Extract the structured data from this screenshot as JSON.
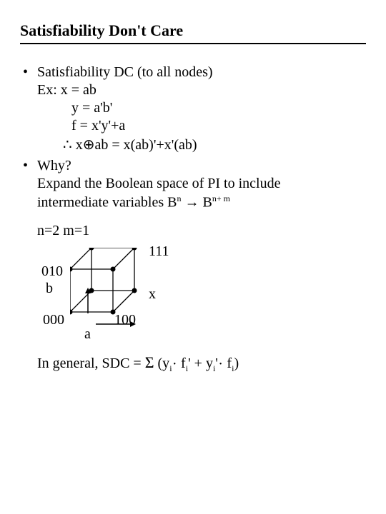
{
  "title": "Satisfiability Don't Care",
  "bullet1": {
    "head": "Satisfiability DC (to all nodes)",
    "ex": "Ex:  x = ab",
    "y": "y =  a'b'",
    "f": "f =  x'y'+a",
    "therefore_sym": "∴",
    "therefore_rest": "  x⊕ab = x(ab)'+x'(ab)"
  },
  "bullet2": {
    "head": "Why?",
    "expand1": "Expand the Boolean space of PI to include",
    "expand2a": "intermediate variables  B",
    "expand2_n": "n",
    "expand2_arrow": " → B",
    "expand2_nm": "n+ m"
  },
  "nm": "n=2 m=1",
  "cube": {
    "l010": "010",
    "l111": "111",
    "lb": "b",
    "lx": "x",
    "l000": "000",
    "l100": "100",
    "la": "a",
    "front": [
      [
        0,
        30
      ],
      [
        60,
        30
      ],
      [
        60,
        90
      ],
      [
        0,
        90
      ]
    ],
    "back": [
      [
        30,
        0
      ],
      [
        90,
        0
      ],
      [
        90,
        60
      ],
      [
        30,
        60
      ]
    ],
    "connect": [
      [
        [
          0,
          30
        ],
        [
          30,
          0
        ]
      ],
      [
        [
          60,
          30
        ],
        [
          90,
          0
        ]
      ],
      [
        [
          60,
          90
        ],
        [
          90,
          60
        ]
      ],
      [
        [
          0,
          90
        ],
        [
          30,
          60
        ]
      ]
    ],
    "dot_r": 3.5,
    "stroke": "#000",
    "stroke_w": 1.3
  },
  "general": {
    "pre": "In general, SDC = ",
    "sigma": "Σ",
    "open": " (y",
    "i": "i",
    "mid1": " f",
    "prime": "'",
    "plus": " + y",
    "mid2": " f",
    "close": ")"
  }
}
